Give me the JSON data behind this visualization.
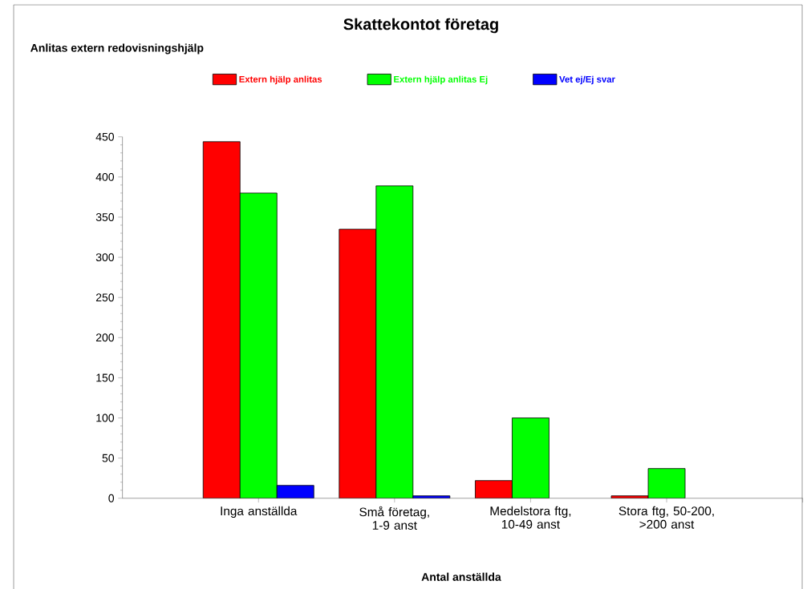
{
  "chart_data": {
    "type": "bar",
    "title": "Skattekontot företag",
    "subtitle": "Anlitas extern redovisningshjälp",
    "xlabel": "Antal anställda",
    "categories": [
      "Inga anställda",
      "Små företag, 1-9 anst",
      "Medelstora ftg, 10-49 anst",
      "Stora ftg, 50-200, >200 anst"
    ],
    "series": [
      {
        "name": "Extern hjälp anlitas",
        "color": "#ff0000",
        "values": [
          444,
          335,
          22,
          3
        ]
      },
      {
        "name": "Extern hjälp anlitas Ej",
        "color": "#00ff00",
        "values": [
          380,
          389,
          100,
          37
        ]
      },
      {
        "name": "Vet ej/Ej svar",
        "color": "#0000ff",
        "values": [
          16,
          3,
          null,
          null
        ]
      }
    ],
    "ylim": [
      0,
      450
    ],
    "yticks": [
      0,
      50,
      100,
      150,
      200,
      250,
      300,
      350,
      400,
      450
    ],
    "grid": false,
    "legend": "top"
  }
}
